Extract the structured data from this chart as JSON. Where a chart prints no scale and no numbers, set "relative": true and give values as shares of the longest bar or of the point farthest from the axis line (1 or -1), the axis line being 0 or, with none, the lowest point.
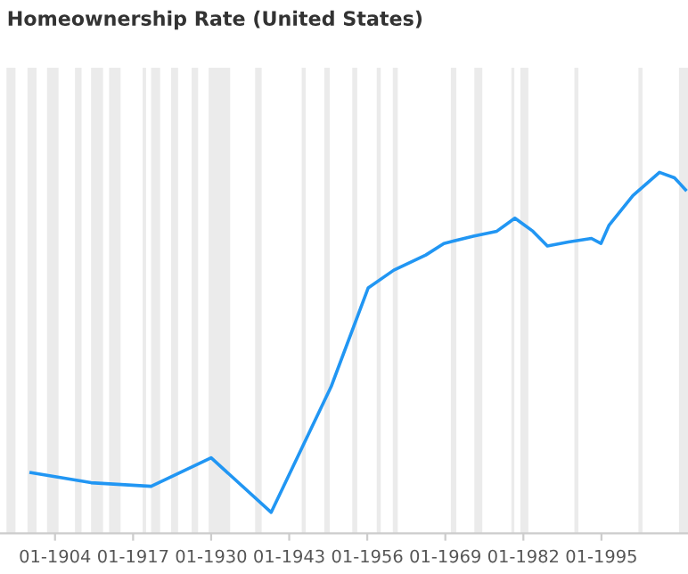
{
  "chart_data": {
    "type": "line",
    "title": "Homeownership Rate (United States)",
    "relative": true,
    "x": [
      "1900-01",
      "1910-01",
      "1920-01",
      "1930-01",
      "1940-01",
      "1950-01",
      "1956-03",
      "1960-06",
      "1965-10",
      "1968-10",
      "1973-09",
      "1977-08",
      "1980-08",
      "1983-08",
      "1986-01",
      "1989-07",
      "1993-05",
      "1994-12",
      "1996-04",
      "2000-04",
      "2004-09",
      "2007-03",
      "2009-01"
    ],
    "series": [
      {
        "color": "#2196f3",
        "values": [
          0.168,
          0.14,
          0.13,
          0.209,
          0.058,
          0.407,
          0.68,
          0.729,
          0.771,
          0.803,
          0.823,
          0.837,
          0.873,
          0.837,
          0.796,
          0.807,
          0.817,
          0.803,
          0.853,
          0.936,
          1.0,
          0.985,
          0.952
        ]
      }
    ],
    "xlim": [
      "1894-11",
      "2009-06"
    ],
    "xticks": [
      {
        "value": "1904-01",
        "label": "01-1904"
      },
      {
        "value": "1917-01",
        "label": "01-1917"
      },
      {
        "value": "1930-01",
        "label": "01-1930"
      },
      {
        "value": "1943-01",
        "label": "01-1943"
      },
      {
        "value": "1956-01",
        "label": "01-1956"
      },
      {
        "value": "1969-01",
        "label": "01-1969"
      },
      {
        "value": "1982-01",
        "label": "01-1982"
      },
      {
        "value": "1995-01",
        "label": "01-1995"
      }
    ],
    "bands": [
      {
        "axis": "x",
        "from": "1895-12",
        "to": "1897-06",
        "color": "#ebebeb"
      },
      {
        "axis": "x",
        "from": "1899-06",
        "to": "1900-12",
        "color": "#ebebeb"
      },
      {
        "axis": "x",
        "from": "1902-09",
        "to": "1904-08",
        "color": "#ebebeb"
      },
      {
        "axis": "x",
        "from": "1907-05",
        "to": "1908-06",
        "color": "#ebebeb"
      },
      {
        "axis": "x",
        "from": "1910-01",
        "to": "1912-01",
        "color": "#ebebeb"
      },
      {
        "axis": "x",
        "from": "1913-01",
        "to": "1914-12",
        "color": "#ebebeb"
      },
      {
        "axis": "x",
        "from": "1918-08",
        "to": "1919-03",
        "color": "#ebebeb"
      },
      {
        "axis": "x",
        "from": "1920-01",
        "to": "1921-07",
        "color": "#ebebeb"
      },
      {
        "axis": "x",
        "from": "1923-05",
        "to": "1924-07",
        "color": "#ebebeb"
      },
      {
        "axis": "x",
        "from": "1926-10",
        "to": "1927-11",
        "color": "#ebebeb"
      },
      {
        "axis": "x",
        "from": "1929-08",
        "to": "1933-03",
        "color": "#ebebeb"
      },
      {
        "axis": "x",
        "from": "1937-05",
        "to": "1938-06",
        "color": "#ebebeb"
      },
      {
        "axis": "x",
        "from": "1945-02",
        "to": "1945-10",
        "color": "#ebebeb"
      },
      {
        "axis": "x",
        "from": "1948-11",
        "to": "1949-10",
        "color": "#ebebeb"
      },
      {
        "axis": "x",
        "from": "1953-07",
        "to": "1954-05",
        "color": "#ebebeb"
      },
      {
        "axis": "x",
        "from": "1957-08",
        "to": "1958-04",
        "color": "#ebebeb"
      },
      {
        "axis": "x",
        "from": "1960-04",
        "to": "1961-02",
        "color": "#ebebeb"
      },
      {
        "axis": "x",
        "from": "1969-12",
        "to": "1970-11",
        "color": "#ebebeb"
      },
      {
        "axis": "x",
        "from": "1973-11",
        "to": "1975-03",
        "color": "#ebebeb"
      },
      {
        "axis": "x",
        "from": "1980-01",
        "to": "1980-07",
        "color": "#ebebeb"
      },
      {
        "axis": "x",
        "from": "1981-07",
        "to": "1982-11",
        "color": "#ebebeb"
      },
      {
        "axis": "x",
        "from": "1990-07",
        "to": "1991-03",
        "color": "#ebebeb"
      },
      {
        "axis": "x",
        "from": "2001-03",
        "to": "2001-11",
        "color": "#ebebeb"
      },
      {
        "axis": "x",
        "from": "2007-12",
        "to": "2009-06",
        "color": "#ebebeb"
      }
    ],
    "marker": "none",
    "line_style": "solid",
    "grid": false
  }
}
